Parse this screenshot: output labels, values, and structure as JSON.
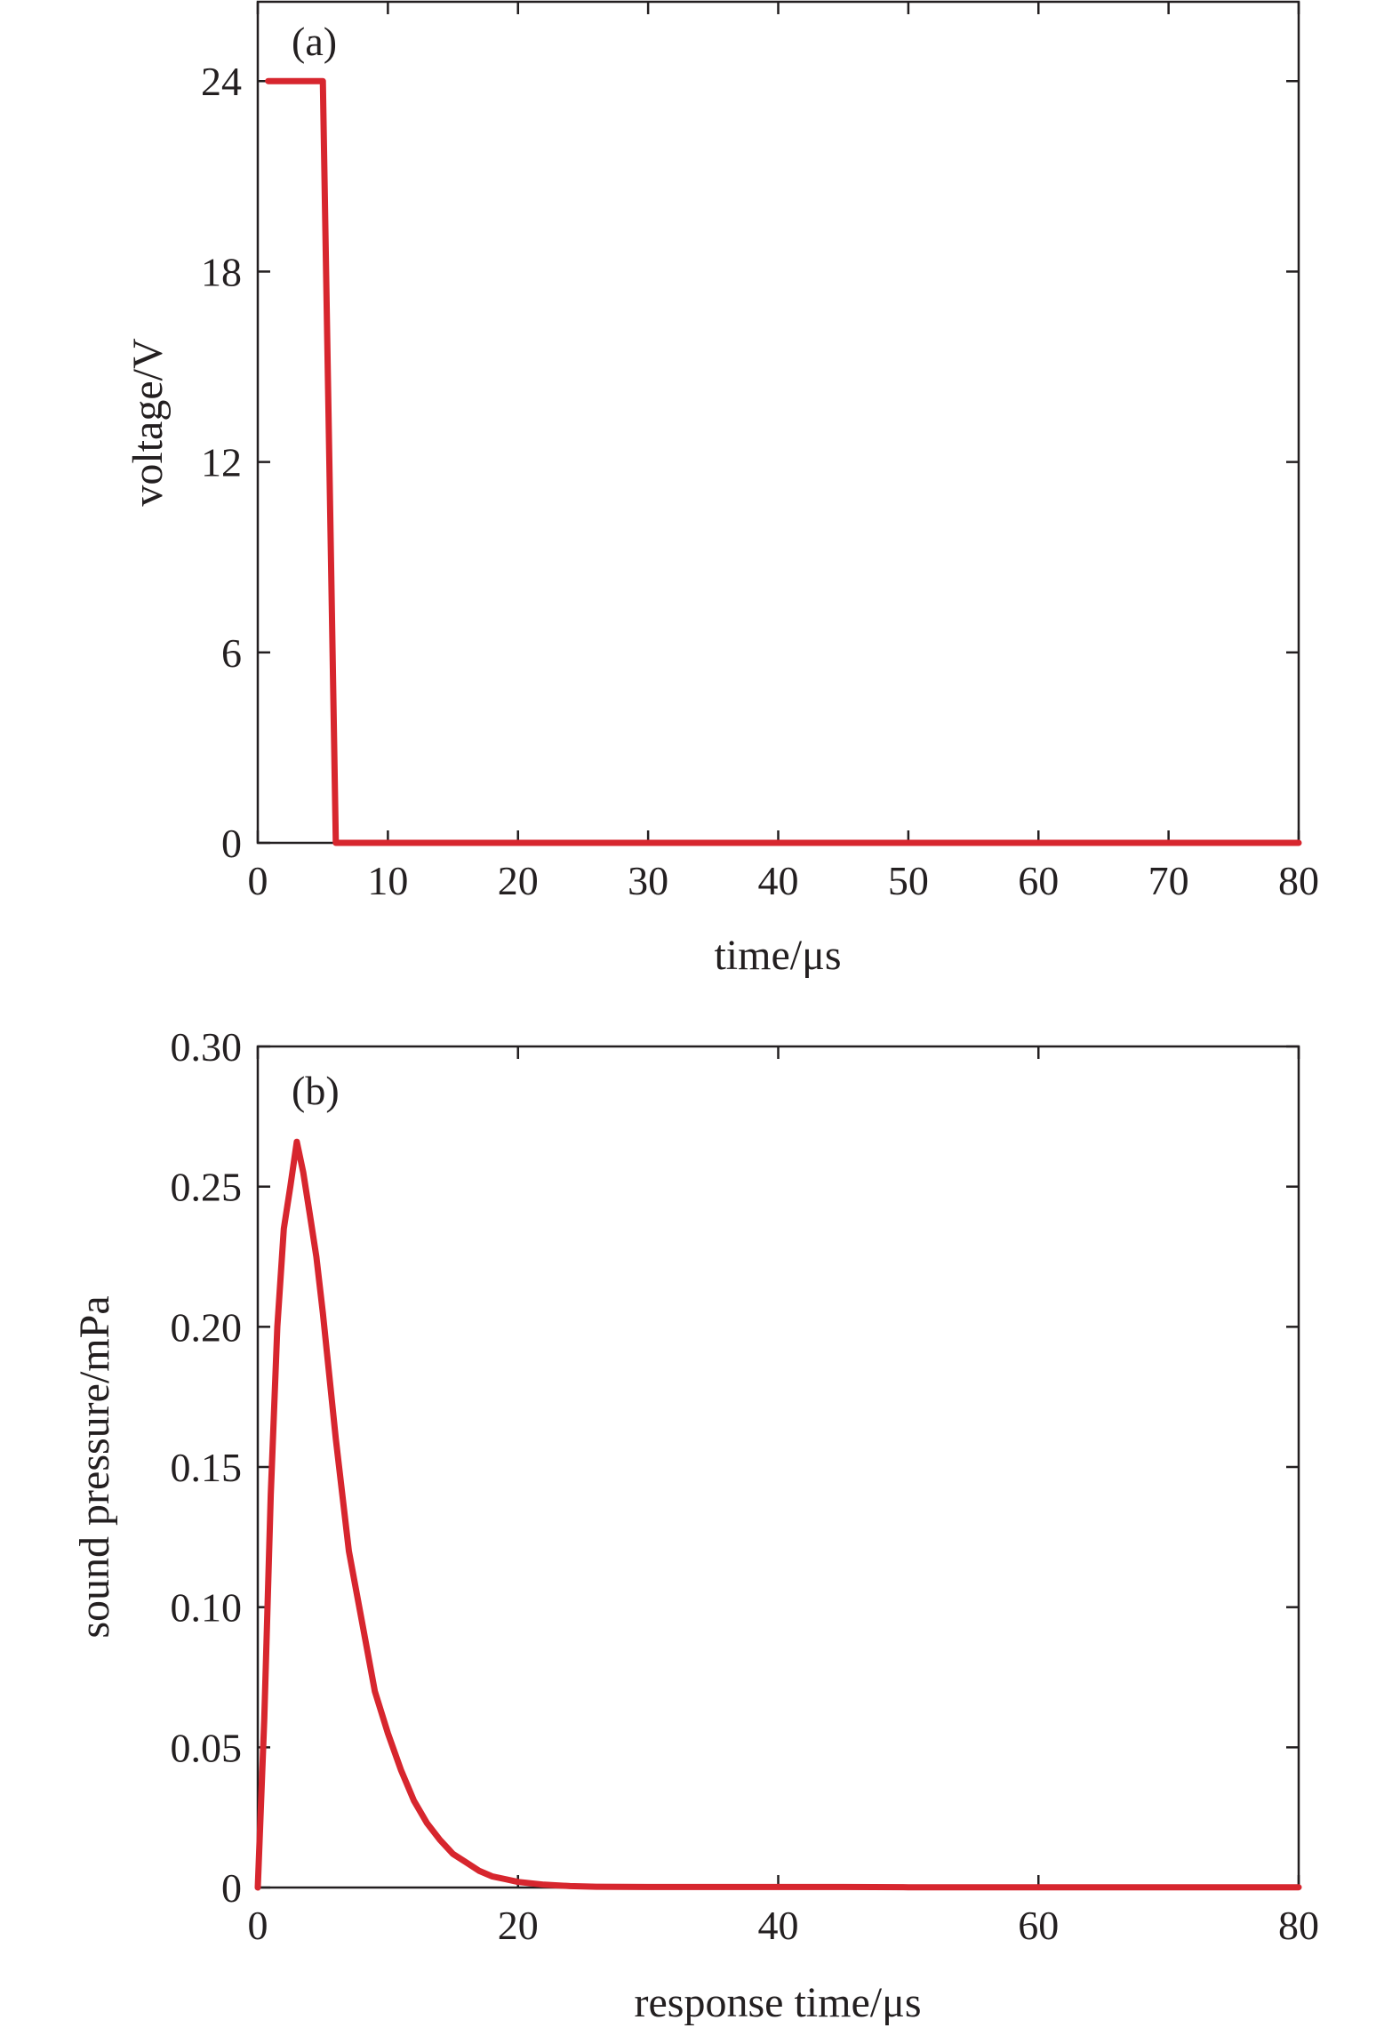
{
  "colors": {
    "series": "#d7262e",
    "axis": "#231f20",
    "background": "#ffffff"
  },
  "chart_data": [
    {
      "type": "line",
      "panel_label": "(a)",
      "title": "",
      "xlabel": "time/μs",
      "ylabel": "voltage/V",
      "xlim": [
        0,
        80
      ],
      "ylim": [
        0,
        26.5
      ],
      "x_ticks": [
        0,
        10,
        20,
        30,
        40,
        50,
        60,
        70,
        80
      ],
      "x_tick_labels": [
        "0",
        "10",
        "20",
        "30",
        "40",
        "50",
        "60",
        "70",
        "80"
      ],
      "y_ticks": [
        0,
        6,
        12,
        18,
        24
      ],
      "y_tick_labels": [
        "0",
        "6",
        "12",
        "18",
        "24"
      ],
      "grid": false,
      "legend": "none",
      "series": [
        {
          "x": [
            0.8,
            5.0,
            6.0,
            80
          ],
          "y": [
            24,
            24,
            0,
            0
          ]
        }
      ]
    },
    {
      "type": "line",
      "panel_label": "(b)",
      "title": "",
      "xlabel": "response time/μs",
      "ylabel": "sound pressure/mPa",
      "xlim": [
        0,
        80
      ],
      "ylim": [
        0,
        0.3
      ],
      "x_ticks": [
        0,
        20,
        40,
        60,
        80
      ],
      "x_tick_labels": [
        "0",
        "20",
        "40",
        "60",
        "80"
      ],
      "y_ticks": [
        0,
        0.05,
        0.1,
        0.15,
        0.2,
        0.25,
        0.3
      ],
      "y_tick_labels": [
        "0",
        "0.05",
        "0.10",
        "0.15",
        "0.20",
        "0.25",
        "0.30"
      ],
      "grid": false,
      "legend": "none",
      "series": [
        {
          "x": [
            0,
            0.5,
            1.0,
            1.5,
            2.0,
            2.5,
            3.0,
            3.5,
            4.0,
            4.5,
            5.0,
            6.0,
            7.0,
            8.0,
            9.0,
            10.0,
            11.0,
            12.0,
            13.0,
            14.0,
            15.0,
            16.0,
            17.0,
            18.0,
            19.0,
            20.0,
            22.0,
            24.0,
            26.0,
            30.0,
            35.0,
            40.0,
            45.0,
            50.0,
            55.0,
            60.0,
            70.0,
            80.0
          ],
          "y": [
            0.0,
            0.06,
            0.14,
            0.2,
            0.235,
            0.25,
            0.266,
            0.255,
            0.24,
            0.225,
            0.205,
            0.16,
            0.12,
            0.095,
            0.07,
            0.055,
            0.042,
            0.031,
            0.023,
            0.017,
            0.012,
            0.009,
            0.006,
            0.004,
            0.003,
            0.002,
            0.001,
            0.0005,
            0.0003,
            0.0002,
            0.0002,
            0.0002,
            0.0002,
            0.0001,
            0.0001,
            0.0001,
            0.0001,
            0.0001
          ]
        }
      ]
    }
  ]
}
